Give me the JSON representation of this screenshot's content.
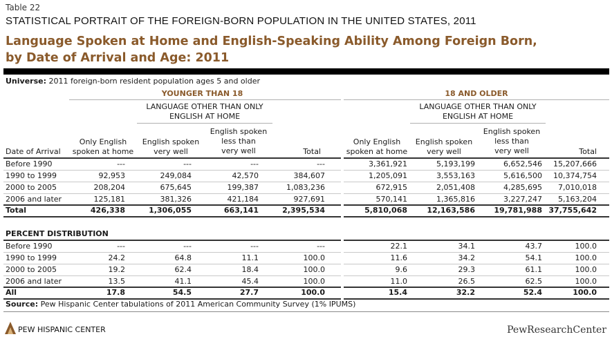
{
  "table_label": "Table 22",
  "supertitle": "STATISTICAL PORTRAIT OF THE FOREIGN-BORN POPULATION IN THE UNITED STATES, 2011",
  "title_line1": "Language Spoken at Home and English-Speaking Ability Among Foreign Born,",
  "title_line2": "by Date of Arrival and Age: 2011",
  "universe_label": "Universe:",
  "universe_text": " 2011 foreign-born resident population ages 5 and older",
  "groups": {
    "younger": "YOUNGER THAN 18",
    "older": "18 AND OLDER"
  },
  "subgroup_line1": "LANGUAGE OTHER THAN ONLY",
  "subgroup_line2": "ENGLISH AT HOME",
  "columns": {
    "date": "Date of Arrival",
    "only_english_1": "Only English",
    "only_english_2": "spoken at home",
    "very_well_1": "English spoken",
    "very_well_2": "very well",
    "less_1": "English spoken",
    "less_2": "less than",
    "less_3": "very well",
    "total": "Total"
  },
  "count_rows": [
    {
      "label": "Before 1990",
      "y": [
        "---",
        "---",
        "---",
        "---"
      ],
      "o": [
        "3,361,921",
        "5,193,199",
        "6,652,546",
        "15,207,666"
      ]
    },
    {
      "label": "1990 to 1999",
      "y": [
        "92,953",
        "249,084",
        "42,570",
        "384,607"
      ],
      "o": [
        "1,205,091",
        "3,553,163",
        "5,616,500",
        "10,374,754"
      ]
    },
    {
      "label": "2000 to 2005",
      "y": [
        "208,204",
        "675,645",
        "199,387",
        "1,083,236"
      ],
      "o": [
        "672,915",
        "2,051,408",
        "4,285,695",
        "7,010,018"
      ]
    },
    {
      "label": "2006 and later",
      "y": [
        "125,181",
        "381,326",
        "421,184",
        "927,691"
      ],
      "o": [
        "570,141",
        "1,365,816",
        "3,227,247",
        "5,163,204"
      ]
    },
    {
      "label": "Total",
      "y": [
        "426,338",
        "1,306,055",
        "663,141",
        "2,395,534"
      ],
      "o": [
        "5,810,068",
        "12,163,586",
        "19,781,988",
        "37,755,642"
      ]
    }
  ],
  "percent_heading": "PERCENT DISTRIBUTION",
  "percent_rows": [
    {
      "label": "Before 1990",
      "y": [
        "---",
        "---",
        "---",
        "---"
      ],
      "o": [
        "22.1",
        "34.1",
        "43.7",
        "100.0"
      ]
    },
    {
      "label": "1990 to 1999",
      "y": [
        "24.2",
        "64.8",
        "11.1",
        "100.0"
      ],
      "o": [
        "11.6",
        "34.2",
        "54.1",
        "100.0"
      ]
    },
    {
      "label": "2000 to 2005",
      "y": [
        "19.2",
        "62.4",
        "18.4",
        "100.0"
      ],
      "o": [
        "9.6",
        "29.3",
        "61.1",
        "100.0"
      ]
    },
    {
      "label": "2006 and later",
      "y": [
        "13.5",
        "41.1",
        "45.4",
        "100.0"
      ],
      "o": [
        "11.0",
        "26.5",
        "62.5",
        "100.0"
      ]
    },
    {
      "label": "All",
      "y": [
        "17.8",
        "54.5",
        "27.7",
        "100.0"
      ],
      "o": [
        "15.4",
        "32.2",
        "52.4",
        "100.0"
      ]
    }
  ],
  "source_label": "Source:",
  "source_text": " Pew Hispanic Center tabulations of 2011 American Community Survey (1% IPUMS)",
  "footer_left": "PEW HISPANIC CENTER",
  "footer_right": "PewResearchCenter",
  "colors": {
    "accent": "#8a5a2b",
    "bar": "#000000"
  }
}
